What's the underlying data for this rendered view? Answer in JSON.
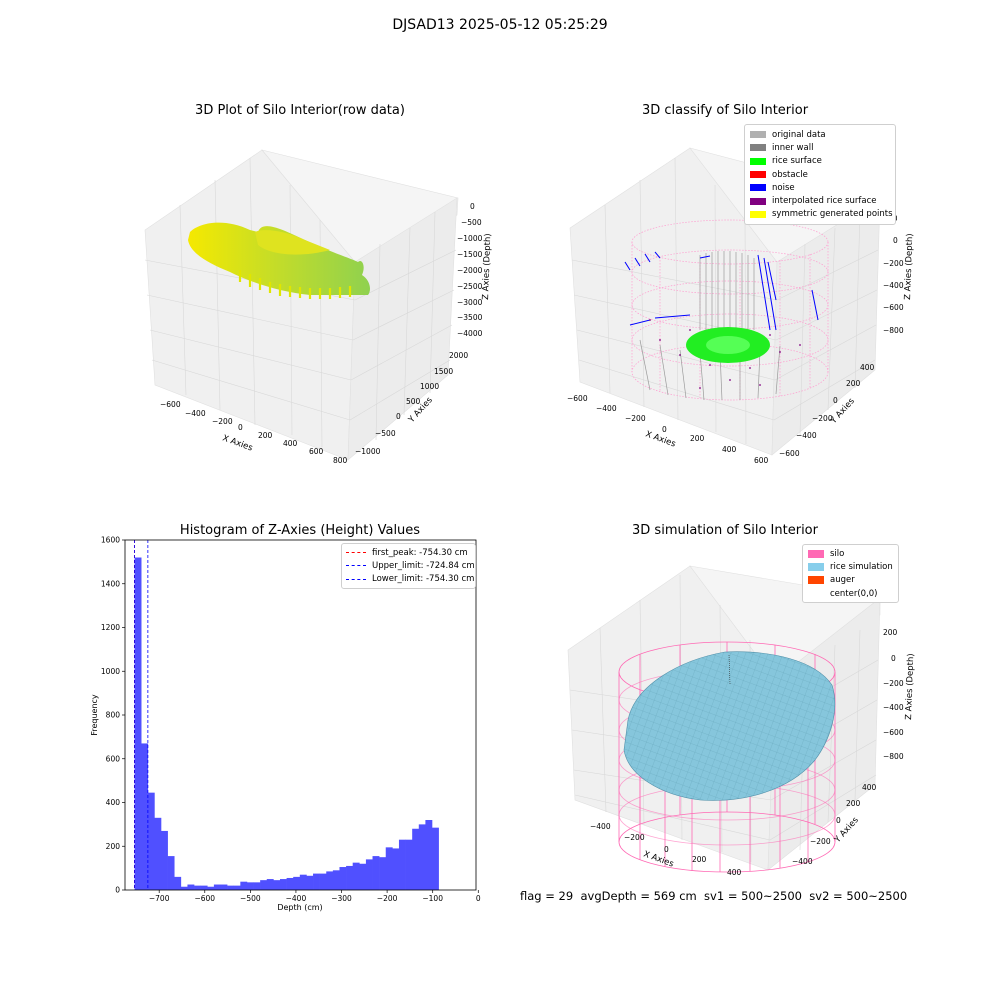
{
  "suptitle": "DJSAD13 2025-05-12 05:25:29",
  "footer": "flag = 29  avgDepth = 569 cm  sv1 = 500~2500  sv2 = 500~2500",
  "colors": {
    "hist_bar": "#5050ff",
    "first_peak": "#ff0000",
    "upper_limit": "#0000ff",
    "lower_limit": "#0000ff",
    "silo": "#ff69b4",
    "rice_simulation": "#87ceeb",
    "auger": "#ff4500",
    "noise": "#0000ff",
    "rice_surface": "#00ff00"
  },
  "chart_data": [
    {
      "type": "scatter",
      "title": "3D Plot of Silo Interior(row data)",
      "xlabel": "X Axies",
      "ylabel": "Y Axies",
      "zlabel": "Z Axies (Depth)",
      "x_ticks": [
        "−600",
        "−400",
        "−200",
        "0",
        "200",
        "400",
        "600",
        "800"
      ],
      "y_ticks": [
        "−1000",
        "−500",
        "0",
        "500",
        "1000",
        "1500",
        "2000"
      ],
      "z_ticks": [
        "0",
        "−500",
        "−1000",
        "−1500",
        "−2000",
        "−2500",
        "−3000",
        "−3500",
        "−4000"
      ],
      "colormap": [
        "#f5e900",
        "#8fd14f"
      ]
    },
    {
      "type": "scatter",
      "title": "3D classify of Silo Interior",
      "xlabel": "X Axies",
      "ylabel": "Y Axies",
      "zlabel": "Z Axies (Depth)",
      "x_ticks": [
        "−600",
        "−400",
        "−200",
        "0",
        "200",
        "400",
        "600"
      ],
      "y_ticks": [
        "−600",
        "−400",
        "−200",
        "0",
        "200",
        "400"
      ],
      "z_ticks": [
        "0",
        "−200",
        "−400",
        "−600",
        "−800"
      ],
      "z_top_partial": "00",
      "legend": [
        {
          "label": "original data",
          "color": "#b0b0b0"
        },
        {
          "label": "inner wall",
          "color": "#808080"
        },
        {
          "label": "rice surface",
          "color": "#00ff00"
        },
        {
          "label": "obstacle",
          "color": "#ff0000"
        },
        {
          "label": "noise",
          "color": "#0000ff"
        },
        {
          "label": "interpolated rice surface",
          "color": "#800080"
        },
        {
          "label": "symmetric generated points",
          "color": "#ffff00"
        }
      ]
    },
    {
      "type": "bar",
      "title": "Histogram of Z-Axies (Height) Values",
      "xlabel": "Depth (cm)",
      "ylabel": "Frequency",
      "xlim": [
        -775,
        -5
      ],
      "ylim": [
        0,
        1600
      ],
      "x_ticks": [
        -700,
        -600,
        -500,
        -400,
        -300,
        -200,
        -100,
        0
      ],
      "y_ticks": [
        0,
        200,
        400,
        600,
        800,
        1000,
        1200,
        1400,
        1600
      ],
      "bin_start": -754,
      "bin_width": 14.5,
      "values": [
        1520,
        670,
        445,
        330,
        270,
        155,
        60,
        15,
        25,
        20,
        20,
        15,
        25,
        25,
        20,
        20,
        38,
        35,
        35,
        45,
        50,
        45,
        50,
        55,
        60,
        70,
        65,
        75,
        75,
        85,
        90,
        105,
        110,
        125,
        120,
        140,
        155,
        150,
        195,
        190,
        230,
        230,
        280,
        300,
        320,
        285
      ],
      "vlines": [
        {
          "label": "first_peak: -754.30 cm",
          "x": -754.3,
          "color": "#ff0000"
        },
        {
          "label": "Upper_limit: -724.84 cm",
          "x": -724.84,
          "color": "#0000ff"
        },
        {
          "label": "Lower_limit: -754.30 cm",
          "x": -754.3,
          "color": "#0000ff"
        }
      ]
    },
    {
      "type": "area",
      "title": "3D simulation of Silo Interior",
      "xlabel": "X Axies",
      "ylabel": "Y Axies",
      "zlabel": "Z Axies (Depth)",
      "x_ticks": [
        "−400",
        "−200",
        "0",
        "200",
        "400"
      ],
      "y_ticks": [
        "−400",
        "−200",
        "0",
        "200",
        "400"
      ],
      "z_ticks": [
        "200",
        "0",
        "−200",
        "−400",
        "−600",
        "−800"
      ],
      "legend": [
        {
          "label": "silo",
          "color": "#ff69b4"
        },
        {
          "label": "rice simulation",
          "color": "#87ceeb"
        },
        {
          "label": "auger",
          "color": "#ff4500"
        },
        {
          "label": "center(0,0)",
          "color": ""
        }
      ]
    }
  ]
}
